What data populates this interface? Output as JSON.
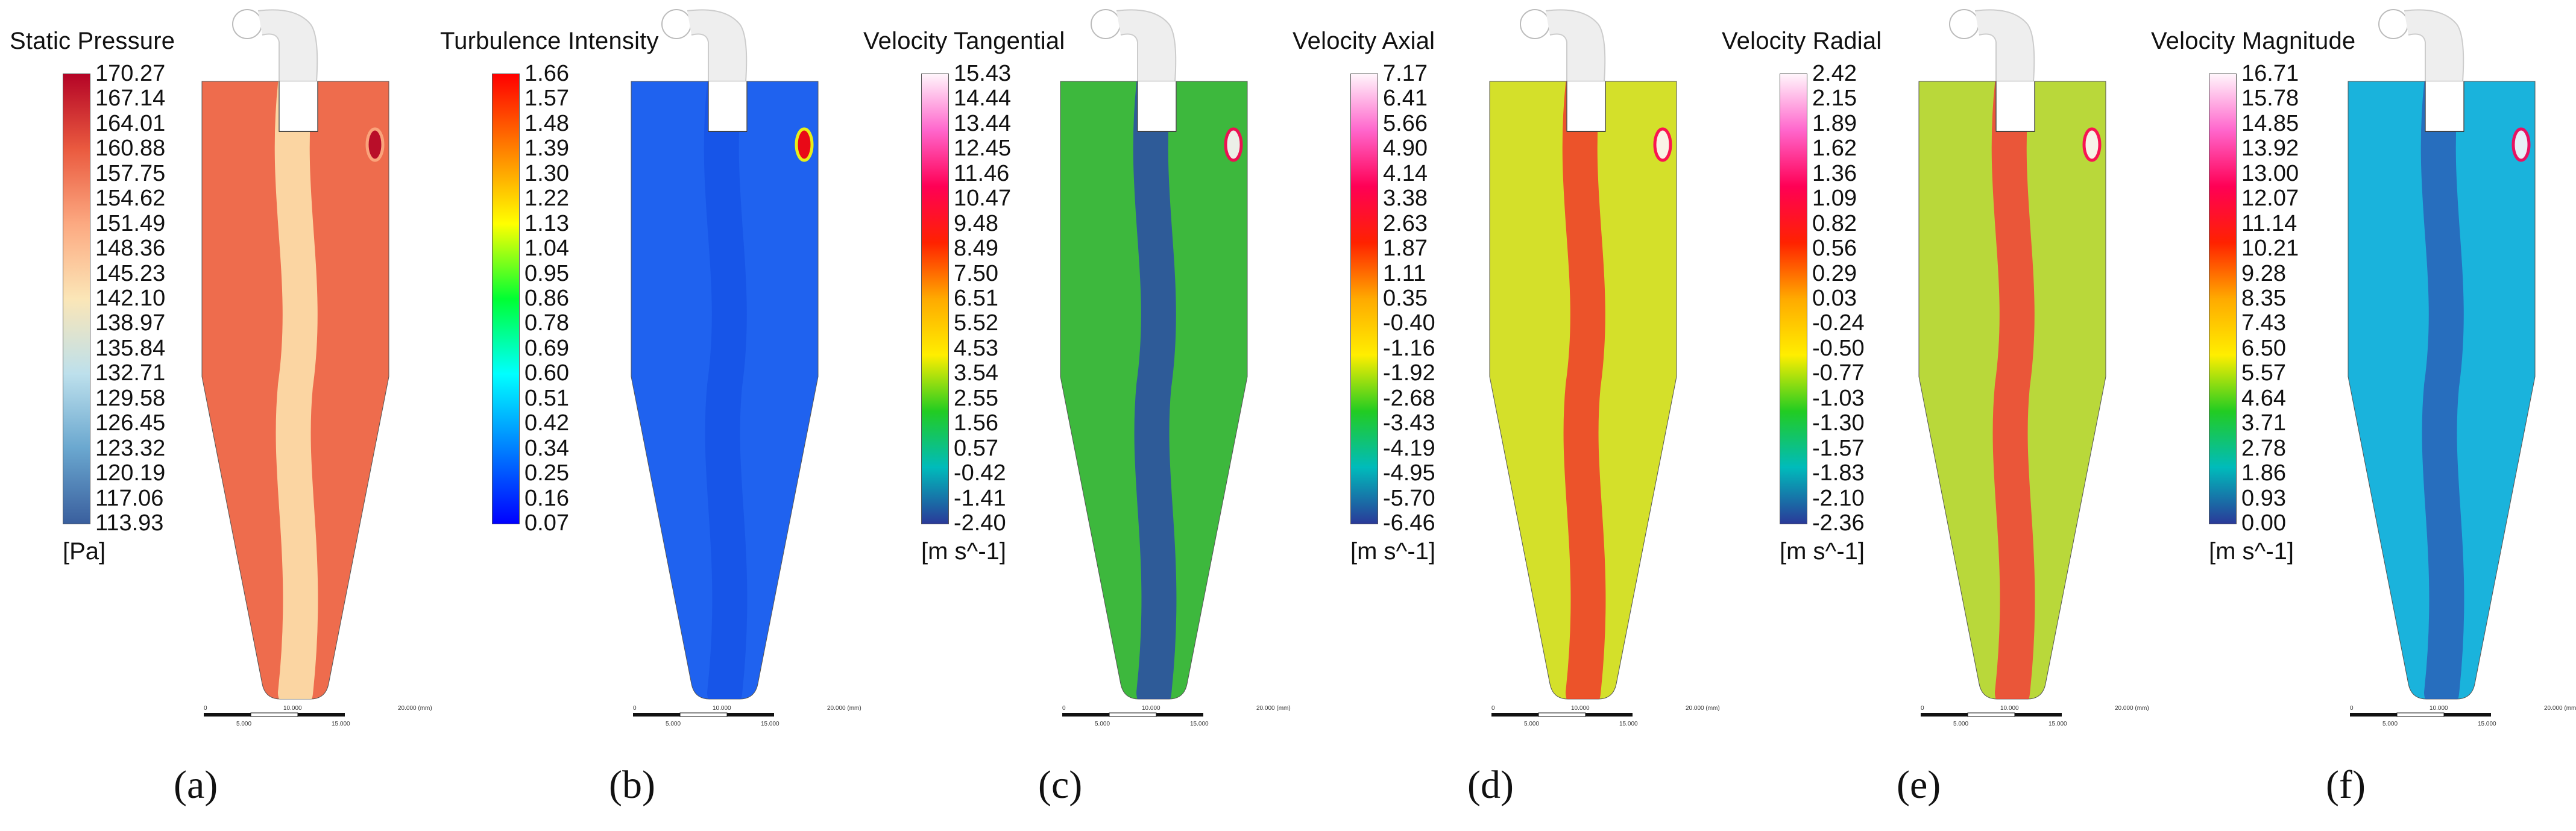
{
  "chart_data": [
    {
      "type": "heatmap",
      "panel_label": "(a)",
      "title": "Static Pressure",
      "unit": "[Pa]",
      "colormap": "blue-white-red",
      "range": [
        113.93,
        170.27
      ],
      "ticks": [
        "170.27",
        "167.14",
        "164.01",
        "160.88",
        "157.75",
        "154.62",
        "151.49",
        "148.36",
        "145.23",
        "142.10",
        "138.97",
        "135.84",
        "132.71",
        "129.58",
        "126.45",
        "123.32",
        "120.19",
        "117.06",
        "113.93"
      ],
      "colors": [
        "#b40426",
        "#ea5a3f",
        "#fca981",
        "#fbe6b7",
        "#bde0ec",
        "#6aa7cf",
        "#3a5f9e"
      ],
      "field_color": "#ee6c4d",
      "core_color": "#fde7b1",
      "scale_labels": [
        "0",
        "5.000",
        "10.000",
        "15.000",
        "20.000 (mm)"
      ]
    },
    {
      "type": "heatmap",
      "panel_label": "(b)",
      "title": "Turbulence Intensity",
      "unit": "",
      "colormap": "rainbow",
      "range": [
        0.07,
        1.66
      ],
      "ticks": [
        "1.66",
        "1.57",
        "1.48",
        "1.39",
        "1.30",
        "1.22",
        "1.13",
        "1.04",
        "0.95",
        "0.86",
        "0.78",
        "0.69",
        "0.60",
        "0.51",
        "0.42",
        "0.34",
        "0.25",
        "0.16",
        "0.07"
      ],
      "colors": [
        "#ff0000",
        "#ff8000",
        "#ffff00",
        "#00ff33",
        "#00ffff",
        "#0080ff",
        "#0000ff"
      ],
      "field_color": "#1f62ef",
      "core_color": "#1654e6",
      "scale_labels": [
        "0",
        "5.000",
        "10.000",
        "15.000",
        "20.000 (mm)"
      ]
    },
    {
      "type": "heatmap",
      "panel_label": "(c)",
      "title": "Velocity Tangential",
      "unit": "[m s^-1]",
      "colormap": "rainbow-white",
      "range": [
        -2.4,
        15.43
      ],
      "ticks": [
        "15.43",
        "14.44",
        "13.44",
        "12.45",
        "11.46",
        "10.47",
        "9.48",
        "8.49",
        "7.50",
        "6.51",
        "5.52",
        "4.53",
        "3.54",
        "2.55",
        "1.56",
        "0.57",
        "-0.42",
        "-1.41",
        "-2.40"
      ],
      "colors": [
        "#fff5fb",
        "#ff66cc",
        "#ff0055",
        "#ff2200",
        "#ffaa00",
        "#ffee00",
        "#22cc22",
        "#00bbbb",
        "#2a3a99"
      ],
      "field_color": "#3db83d",
      "core_color": "#2b4aa8",
      "scale_labels": [
        "0",
        "5.000",
        "10.000",
        "15.000",
        "20.000 (mm)"
      ]
    },
    {
      "type": "heatmap",
      "panel_label": "(d)",
      "title": "Velocity Axial",
      "unit": "[m s^-1]",
      "colormap": "rainbow-white",
      "range": [
        -6.46,
        7.17
      ],
      "ticks": [
        "7.17",
        "6.41",
        "5.66",
        "4.90",
        "4.14",
        "3.38",
        "2.63",
        "1.87",
        "1.11",
        "0.35",
        "-0.40",
        "-1.16",
        "-1.92",
        "-2.68",
        "-3.43",
        "-4.19",
        "-4.95",
        "-5.70",
        "-6.46"
      ],
      "colors": [
        "#fff5fb",
        "#ff66cc",
        "#ff0055",
        "#ff2200",
        "#ffaa00",
        "#ffee00",
        "#22cc22",
        "#00bbbb",
        "#2a3a99"
      ],
      "field_color": "#d4e02a",
      "core_color": "#f03a2a",
      "scale_labels": [
        "0",
        "5.000",
        "10.000",
        "15.000",
        "20.000 (mm)"
      ]
    },
    {
      "type": "heatmap",
      "panel_label": "(e)",
      "title": "Velocity Radial",
      "unit": "[m s^-1]",
      "colormap": "rainbow-white",
      "range": [
        -2.36,
        2.42
      ],
      "ticks": [
        "2.42",
        "2.15",
        "1.89",
        "1.62",
        "1.36",
        "1.09",
        "0.82",
        "0.56",
        "0.29",
        "0.03",
        "-0.24",
        "-0.50",
        "-0.77",
        "-1.03",
        "-1.30",
        "-1.57",
        "-1.83",
        "-2.10",
        "-2.36"
      ],
      "colors": [
        "#fff5fb",
        "#ff66cc",
        "#ff0055",
        "#ff2200",
        "#ffaa00",
        "#ffee00",
        "#22cc22",
        "#00bbbb",
        "#2a3a99"
      ],
      "field_color": "#b9d83a",
      "core_color": "#f2403a",
      "scale_labels": [
        "0",
        "5.000",
        "10.000",
        "15.000",
        "20.000 (mm)"
      ]
    },
    {
      "type": "heatmap",
      "panel_label": "(f)",
      "title": "Velocity Magnitude",
      "unit": "[m s^-1]",
      "colormap": "rainbow-white",
      "range": [
        0.0,
        16.71
      ],
      "ticks": [
        "16.71",
        "15.78",
        "14.85",
        "13.92",
        "13.00",
        "12.07",
        "11.14",
        "10.21",
        "9.28",
        "8.35",
        "7.43",
        "6.50",
        "5.57",
        "4.64",
        "3.71",
        "2.78",
        "1.86",
        "0.93",
        "0.00"
      ],
      "colors": [
        "#fff5fb",
        "#ff66cc",
        "#ff0055",
        "#ff2200",
        "#ffaa00",
        "#ffee00",
        "#22cc22",
        "#00bbbb",
        "#2a3a99"
      ],
      "field_color": "#1ab3dc",
      "core_color": "#2a62b8",
      "scale_labels": [
        "0",
        "5.000",
        "10.000",
        "15.000",
        "20.000 (mm)"
      ]
    }
  ]
}
